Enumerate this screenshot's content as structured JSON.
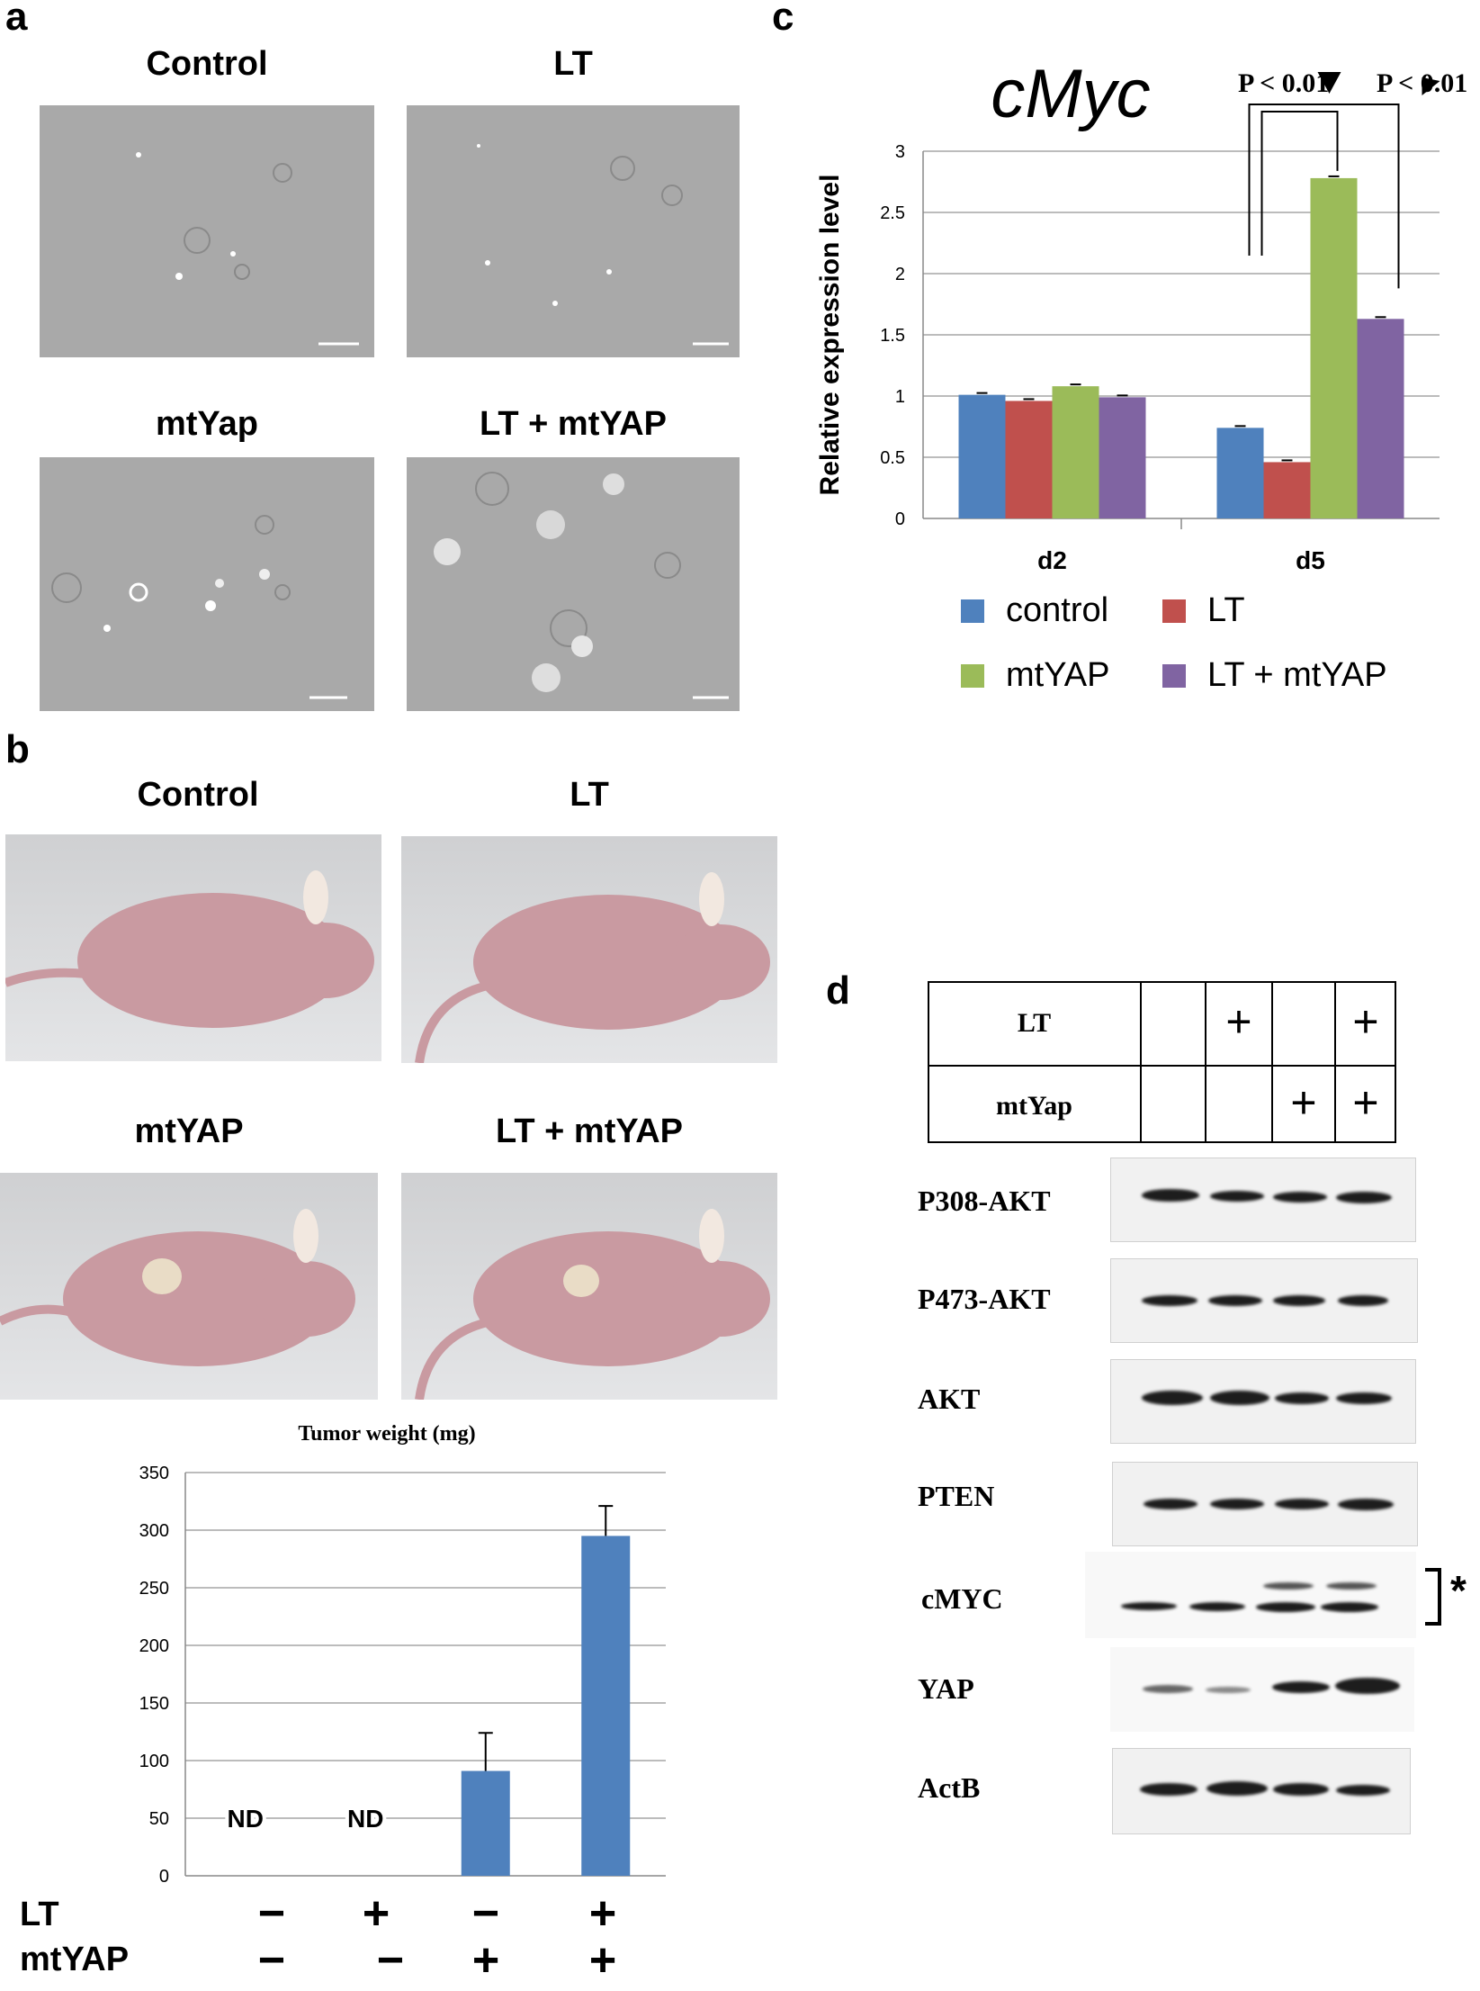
{
  "panel_a": {
    "letter": "a",
    "titles": [
      "Control",
      "LT",
      "mtYap",
      "LT + mtYAP"
    ]
  },
  "panel_b": {
    "letter": "b",
    "titles": [
      "Control",
      "LT",
      "mtYAP",
      "LT + mtYAP"
    ],
    "chart_title": "Tumor weight (mg)",
    "nd_labels": [
      "ND",
      "ND"
    ],
    "row_labels": [
      "LT",
      "mtYAP"
    ],
    "lt_signs": [
      "−",
      "+",
      "−",
      "+"
    ],
    "mtyap_signs": [
      "−",
      "−",
      "+",
      "+"
    ]
  },
  "panel_c": {
    "letter": "c",
    "p_labels": [
      "P < 0.01",
      "P < 0.01"
    ]
  },
  "panel_d": {
    "letter": "d",
    "header_rows": [
      {
        "label": "LT",
        "signs": [
          "",
          "+",
          "",
          "+"
        ]
      },
      {
        "label": "mtYap",
        "signs": [
          "",
          "",
          "+",
          "+"
        ]
      }
    ],
    "blots": [
      "P308-AKT",
      "P473-AKT",
      "AKT",
      "PTEN",
      "cMYC",
      "YAP",
      "ActB"
    ],
    "asterisk": "*"
  },
  "colors": {
    "control": "#4f81bd",
    "LT": "#c0504d",
    "mtYAP": "#9bbb59",
    "LT_mtYAP": "#8064a2"
  },
  "chart_data": [
    {
      "type": "bar",
      "title": "cMyc",
      "xlabel": "",
      "ylabel": "Relative expression level",
      "categories": [
        "d2",
        "d5"
      ],
      "series": [
        {
          "name": "control",
          "values": [
            1.01,
            0.74
          ]
        },
        {
          "name": "LT",
          "values": [
            0.96,
            0.46
          ]
        },
        {
          "name": "mtYAP",
          "values": [
            1.08,
            2.78
          ]
        },
        {
          "name": "LT + mtYAP",
          "values": [
            0.99,
            1.63
          ]
        }
      ],
      "ylim": [
        0,
        3
      ],
      "yticks": [
        0,
        0.5,
        1,
        1.5,
        2,
        2.5,
        3
      ],
      "grid": true,
      "legend": "bottom"
    },
    {
      "type": "bar",
      "title": "Tumor weight (mg)",
      "xlabel": "",
      "ylabel": "",
      "categories": [
        "LT−/mtYAP−",
        "LT+/mtYAP−",
        "LT−/mtYAP+",
        "LT+/mtYAP+"
      ],
      "values": [
        null,
        null,
        91,
        295
      ],
      "errors": [
        null,
        null,
        33,
        26
      ],
      "ylim": [
        0,
        350
      ],
      "yticks": [
        0,
        50,
        100,
        150,
        200,
        250,
        300,
        350
      ],
      "grid": true
    }
  ]
}
